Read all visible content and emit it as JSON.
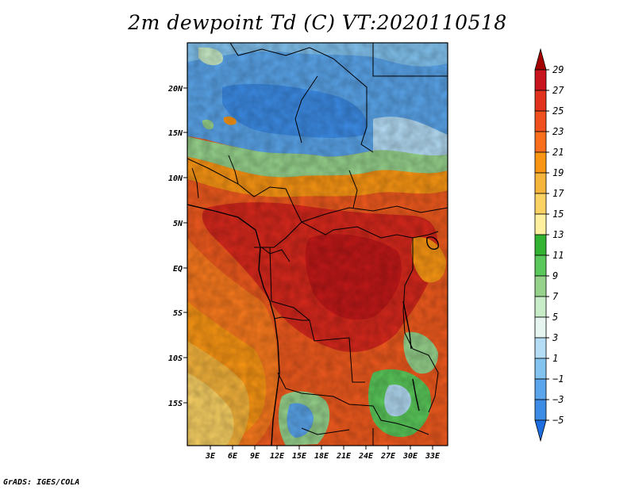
{
  "title": "2m dewpoint Td (C) VT:2020110518",
  "footer": "GrADS: IGES/COLA",
  "map": {
    "variable": "2m dewpoint",
    "units": "C",
    "valid_time": "2020110518",
    "lat_ticks": [
      "20N",
      "15N",
      "10N",
      "5N",
      "EQ",
      "5S",
      "10S",
      "15S"
    ],
    "lon_ticks": [
      "3E",
      "6E",
      "9E",
      "12E",
      "15E",
      "18E",
      "21E",
      "24E",
      "27E",
      "30E",
      "33E"
    ]
  },
  "legend": {
    "labels": [
      "29",
      "27",
      "25",
      "23",
      "21",
      "19",
      "17",
      "15",
      "13",
      "11",
      "9",
      "7",
      "5",
      "3",
      "1",
      "-1",
      "-3",
      "-5"
    ],
    "colors": [
      "#a50000",
      "#c8141e",
      "#e1321e",
      "#f0501e",
      "#fa6e1e",
      "#fa9614",
      "#f5b43c",
      "#fad264",
      "#fff0a0",
      "#32b432",
      "#5ac85a",
      "#96d28c",
      "#c8ebc8",
      "#e6f5f0",
      "#b4dcf5",
      "#82c3f0",
      "#5aa5eb",
      "#3c8ce6",
      "#1e6ee1"
    ]
  }
}
